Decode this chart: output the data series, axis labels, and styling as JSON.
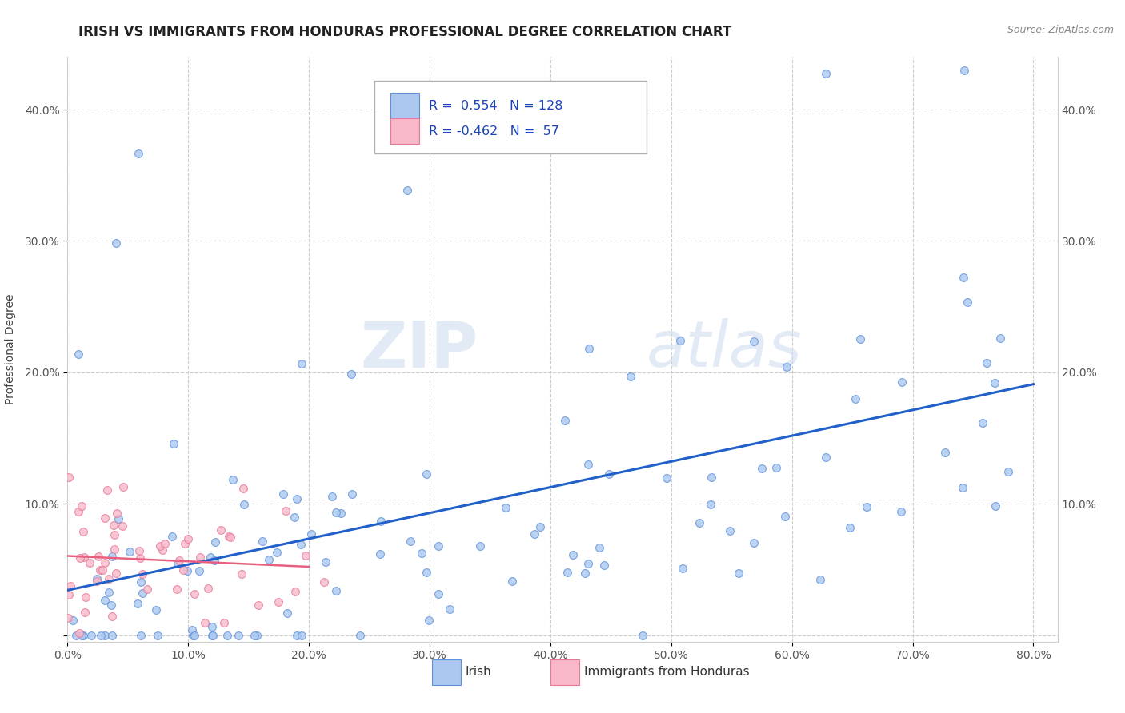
{
  "title": "IRISH VS IMMIGRANTS FROM HONDURAS PROFESSIONAL DEGREE CORRELATION CHART",
  "source_text": "Source: ZipAtlas.com",
  "ylabel": "Professional Degree",
  "watermark_zip": "ZIP",
  "watermark_atlas": "atlas",
  "xlim": [
    0.0,
    0.82
  ],
  "ylim": [
    -0.005,
    0.44
  ],
  "xticks": [
    0.0,
    0.1,
    0.2,
    0.3,
    0.4,
    0.5,
    0.6,
    0.7,
    0.8
  ],
  "xticklabels": [
    "0.0%",
    "10.0%",
    "20.0%",
    "30.0%",
    "40.0%",
    "50.0%",
    "60.0%",
    "70.0%",
    "80.0%"
  ],
  "yticks": [
    0.0,
    0.1,
    0.2,
    0.3,
    0.4
  ],
  "yticklabels": [
    "",
    "10.0%",
    "20.0%",
    "30.0%",
    "40.0%"
  ],
  "right_ytick_labels": [
    "10.0%",
    "20.0%",
    "30.0%",
    "40.0%"
  ],
  "irish_color": "#aac8f0",
  "irish_edge_color": "#6090d8",
  "honduras_color": "#f8b8c8",
  "honduras_edge_color": "#e87898",
  "irish_line_color": "#2060c8",
  "honduras_line_color": "#e86080",
  "R_irish": 0.554,
  "N_irish": 128,
  "R_honduras": -0.462,
  "N_honduras": 57,
  "title_fontsize": 12,
  "axis_label_fontsize": 10,
  "tick_fontsize": 10,
  "background_color": "#ffffff",
  "grid_color": "#cccccc"
}
